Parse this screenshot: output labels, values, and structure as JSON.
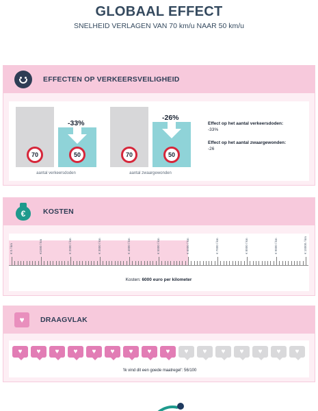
{
  "header": {
    "title": "GLOBAAL EFFECT",
    "subtitle": "SNELHEID VERLAGEN VAN 70 km/u NAAR 50 km/u"
  },
  "safety": {
    "heading": "EFFECTEN OP VERKEERSVEILIGHEID",
    "icon": "smiley-icon",
    "groups": [
      {
        "caption": "aantal verkeersdoden",
        "before": "70",
        "after": "50",
        "change": "-33%"
      },
      {
        "caption": "aantal zwaargewonden",
        "before": "70",
        "after": "50",
        "change": "-26%"
      }
    ],
    "effects": [
      {
        "label": "Effect op het aantal verkeersdoden:",
        "value": "-33%"
      },
      {
        "label": "Effect op het aantal zwaargewonden:",
        "value": "-26"
      }
    ]
  },
  "costs": {
    "heading": "KOSTEN",
    "icon": "money-bag-icon",
    "currency_symbol": "€",
    "tick_labels": [
      "€ 0 / km",
      "€1000 / km",
      "€ 2000 / km",
      "€ 3000 / km",
      "€ 4000 / km",
      "€ 5000 / km",
      "€ 6000 / km",
      "€ 7000 / km",
      "€ 8000 / km",
      "€ 9000 / km",
      "€ 10000 / km"
    ],
    "value": 6000,
    "max": 10000,
    "text_prefix": "Kosten: ",
    "text_value": "6000 euro per kilometer"
  },
  "support": {
    "heading": "DRAAGVLAK",
    "icon": "heart-icon",
    "filled": 9,
    "total": 16,
    "quote": "'Ik vind dit een goede maatregel': 56/100"
  },
  "colors": {
    "pink_band": "#f7c9dc",
    "teal": "#8fd3d8",
    "grey": "#d7d7d9",
    "heart_pink": "#e27db5",
    "sign_red": "#d6263a"
  }
}
